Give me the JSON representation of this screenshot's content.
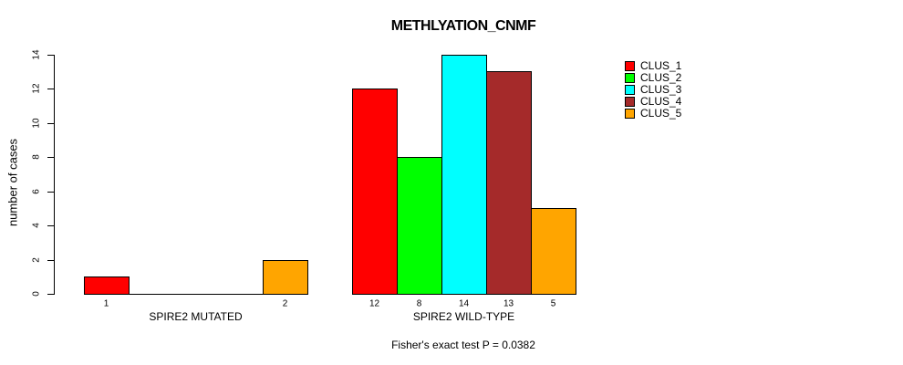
{
  "title": "METHLYATION_CNMF",
  "footer": "Fisher's exact test P = 0.0382",
  "y_axis": {
    "label": "number of cases",
    "ticks": [
      0,
      2,
      4,
      6,
      8,
      10,
      12,
      14
    ]
  },
  "legend": {
    "position": "right",
    "items": [
      {
        "label": "CLUS_1",
        "color": "#FF0000"
      },
      {
        "label": "CLUS_2",
        "color": "#00FF00"
      },
      {
        "label": "CLUS_3",
        "color": "#00FFFF"
      },
      {
        "label": "CLUS_4",
        "color": "#A52A2A"
      },
      {
        "label": "CLUS_5",
        "color": "#FFA500"
      }
    ]
  },
  "chart_data": {
    "type": "bar",
    "title": "METHLYATION_CNMF",
    "xlabel": "",
    "ylabel": "number of cases",
    "ylim": [
      0,
      14
    ],
    "yticks": [
      0,
      2,
      4,
      6,
      8,
      10,
      12,
      14
    ],
    "grid": false,
    "legend_position": "right",
    "series_names": [
      "CLUS_1",
      "CLUS_2",
      "CLUS_3",
      "CLUS_4",
      "CLUS_5"
    ],
    "series_colors": [
      "#FF0000",
      "#00FF00",
      "#00FFFF",
      "#A52A2A",
      "#FFA500"
    ],
    "groups": [
      {
        "label": "SPIRE2 MUTATED",
        "values": [
          1,
          0,
          0,
          0,
          2
        ]
      },
      {
        "label": "SPIRE2 WILD-TYPE",
        "values": [
          12,
          8,
          14,
          13,
          5
        ]
      }
    ],
    "value_labels": "nonzero bar values printed beneath each bar",
    "annotation": "Fisher's exact test P = 0.0382"
  }
}
